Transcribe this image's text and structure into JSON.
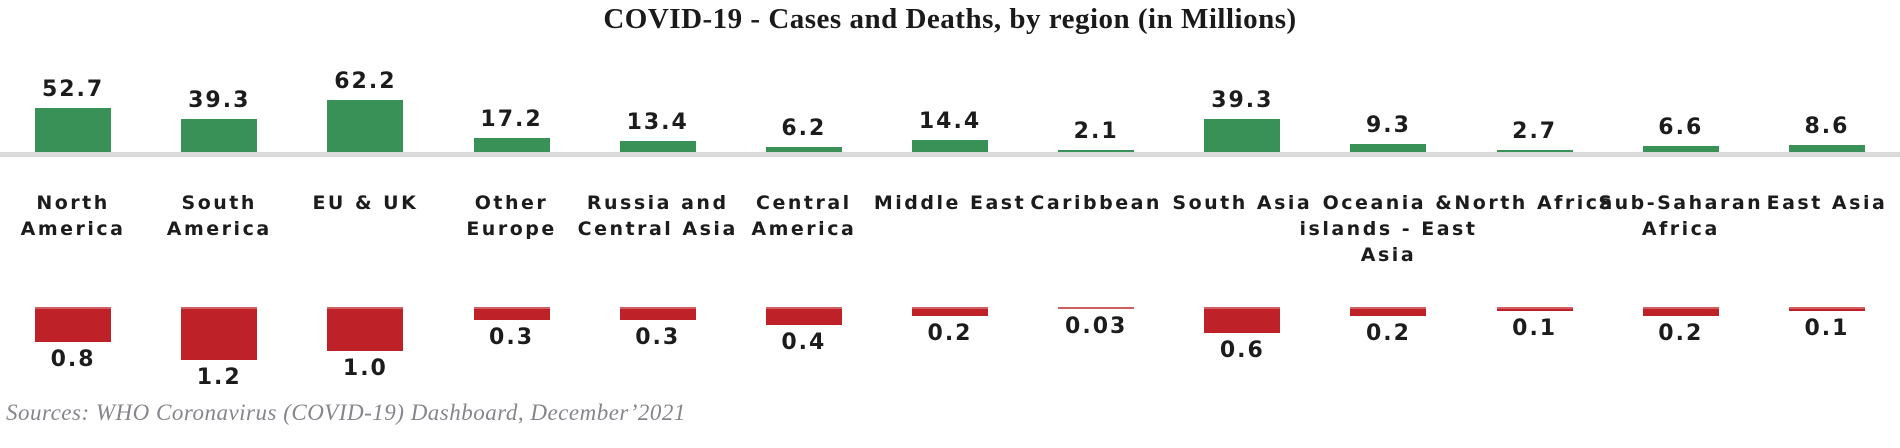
{
  "title": "COVID-19 - Cases and Deaths, by region (in Millions)",
  "source": "Sources: WHO Coronavirus (COVID-19) Dashboard, December’2021",
  "chart_data": {
    "type": "bar",
    "title": "COVID-19 - Cases and Deaths, by region (in Millions)",
    "categories": [
      "North\nAmerica",
      "South\nAmerica",
      "EU & UK",
      "Other\nEurope",
      "Russia and\nCentral Asia",
      "Central\nAmerica",
      "Middle East",
      "Caribbean",
      "South Asia",
      "Oceania &\nislands - East\nAsia",
      "North Africa",
      "Sub-Saharan\nAfrica",
      "East Asia"
    ],
    "series": [
      {
        "name": "Cases",
        "color": "#3a9157",
        "values": [
          52.7,
          39.3,
          62.2,
          17.2,
          13.4,
          6.2,
          14.4,
          2.1,
          39.3,
          9.3,
          2.7,
          6.6,
          8.6
        ],
        "labels": [
          "52.7",
          "39.3",
          "62.2",
          "17.2",
          "13.4",
          "6.2",
          "14.4",
          "2.1",
          "39.3",
          "9.3",
          "2.7",
          "6.6",
          "8.6"
        ]
      },
      {
        "name": "Deaths",
        "color": "#be2127",
        "values": [
          0.8,
          1.2,
          1.0,
          0.3,
          0.3,
          0.4,
          0.2,
          0.03,
          0.6,
          0.2,
          0.1,
          0.2,
          0.1
        ],
        "labels": [
          "0.8",
          "1.2",
          "1.0",
          "0.3",
          "0.3",
          "0.4",
          "0.2",
          "0.03",
          "0.6",
          "0.2",
          "0.1",
          "0.2",
          "0.1"
        ]
      }
    ],
    "unit": "Millions",
    "layout": {
      "orientation": "mirrored-vertical",
      "cases_above_baseline": true,
      "deaths_below_labels": true,
      "grid": false,
      "legend": false,
      "baseline_color": "#dbdbdb"
    }
  }
}
